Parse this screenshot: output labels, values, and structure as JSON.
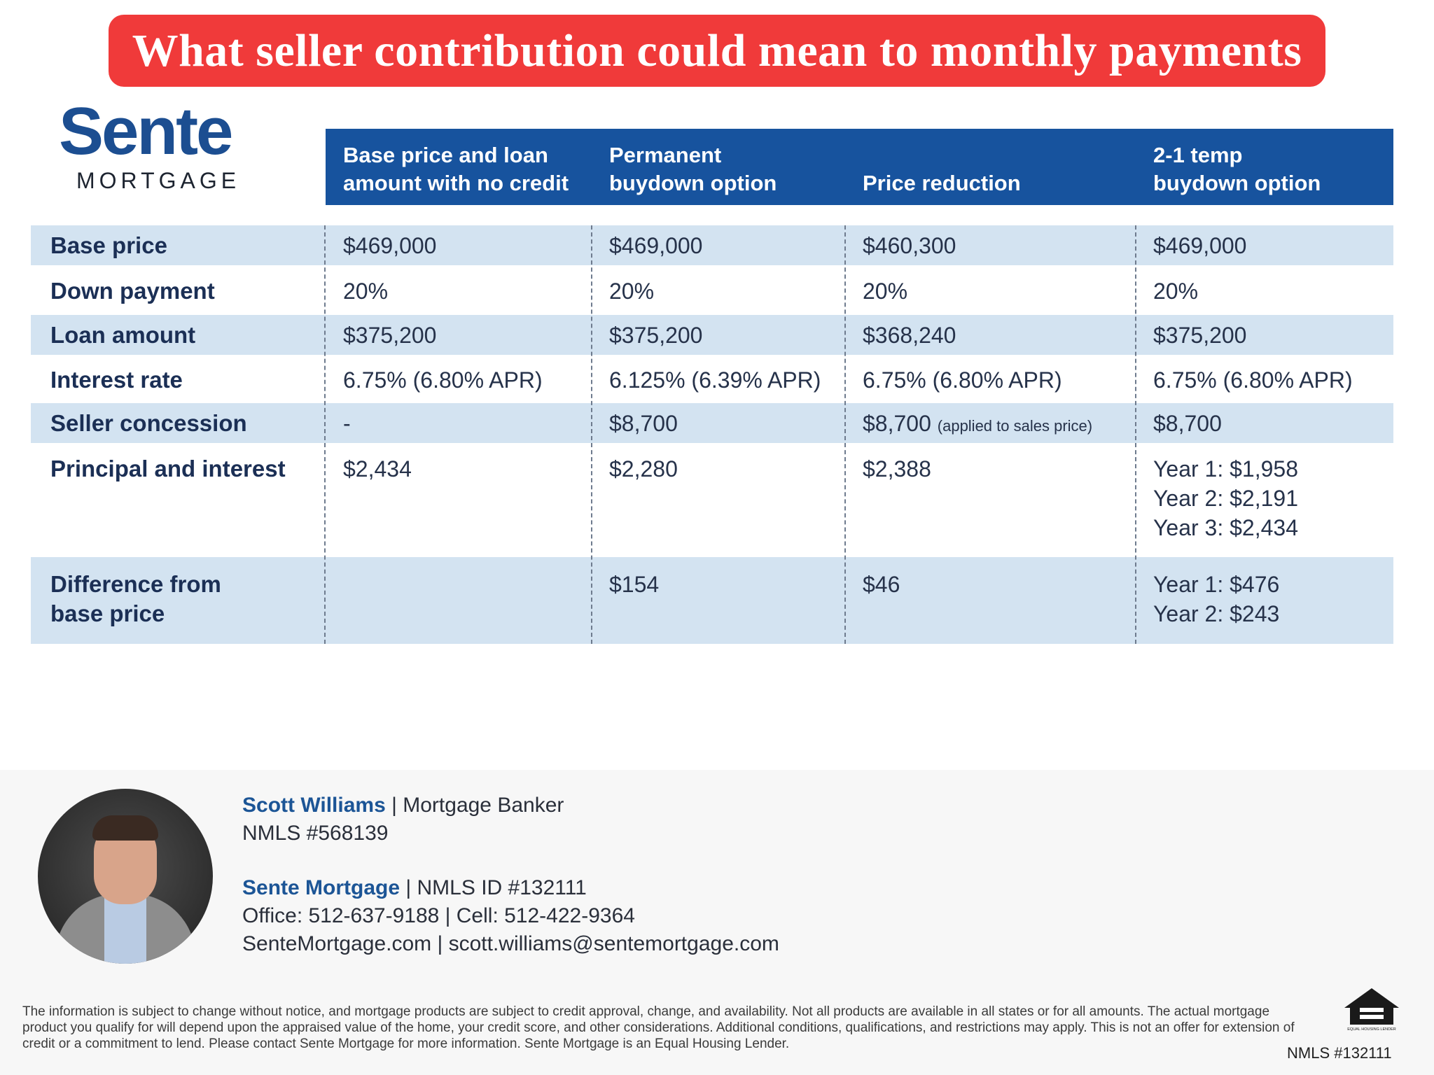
{
  "title": "What seller contribution could mean to monthly payments",
  "logo": {
    "word": "Sente",
    "sub": "MORTGAGE"
  },
  "columns": [
    {
      "line1": "Base price and loan",
      "line2": "amount with no credit"
    },
    {
      "line1": "Permanent",
      "line2": "buydown option"
    },
    {
      "line1": "",
      "line2": "Price reduction"
    },
    {
      "line1": "2-1 temp",
      "line2": "buydown option"
    }
  ],
  "rows": {
    "base_price": {
      "label": "Base price",
      "values": [
        "$469,000",
        "$469,000",
        "$460,300",
        "$469,000"
      ]
    },
    "down_payment": {
      "label": "Down payment",
      "values": [
        "20%",
        "20%",
        "20%",
        "20%"
      ]
    },
    "loan_amount": {
      "label": "Loan amount",
      "values": [
        "$375,200",
        "$375,200",
        "$368,240",
        "$375,200"
      ]
    },
    "interest_rate": {
      "label": "Interest rate",
      "values": [
        "6.75% (6.80% APR)",
        "6.125% (6.39% APR)",
        "6.75% (6.80% APR)",
        "6.75% (6.80% APR)"
      ]
    },
    "seller_concession": {
      "label": "Seller concession",
      "values": [
        "-",
        "$8,700",
        "$8,700",
        "$8,700"
      ],
      "note": "(applied to sales price)"
    },
    "principal_interest": {
      "label": "Principal and interest",
      "values": [
        "$2,434",
        "$2,280",
        "$2,388"
      ],
      "temp": [
        "Year 1: $1,958",
        "Year 2: $2,191",
        "Year 3: $2,434"
      ]
    },
    "difference": {
      "label1": "Difference from",
      "label2": "base price",
      "values": [
        "",
        "$154",
        "$46"
      ],
      "temp": [
        "Year 1: $476",
        "Year 2: $243"
      ]
    }
  },
  "contact": {
    "name": "Scott Williams",
    "role": "| Mortgage Banker",
    "nmls": "NMLS #568139",
    "company": "Sente Mortgage",
    "company_nmls": "| NMLS ID #132111",
    "phones": "Office: 512-637-9188 | Cell: 512-422-9364",
    "web": "SenteMortgage.com | scott.williams@sentemortgage.com"
  },
  "disclaimer": "The information is subject to change without notice, and mortgage products are subject to credit approval, change, and availability. Not all products are available in all states or for all amounts. The actual mortgage product you qualify for will depend upon the appraised value of the home, your credit score, and other considerations. Additional conditions, qualifications, and restrictions may apply. This is not an offer for extension of credit or a commitment to lend. Please contact Sente Mortgage for more information. Sente Mortgage is an Equal Housing Lender.",
  "equal_housing": "EQUAL HOUSING LENDER",
  "footer_nmls": "NMLS #132111",
  "colors": {
    "banner": "#f03a3a",
    "header": "#17539e",
    "shade": "#d3e3f1",
    "brand": "#1c4e91"
  }
}
